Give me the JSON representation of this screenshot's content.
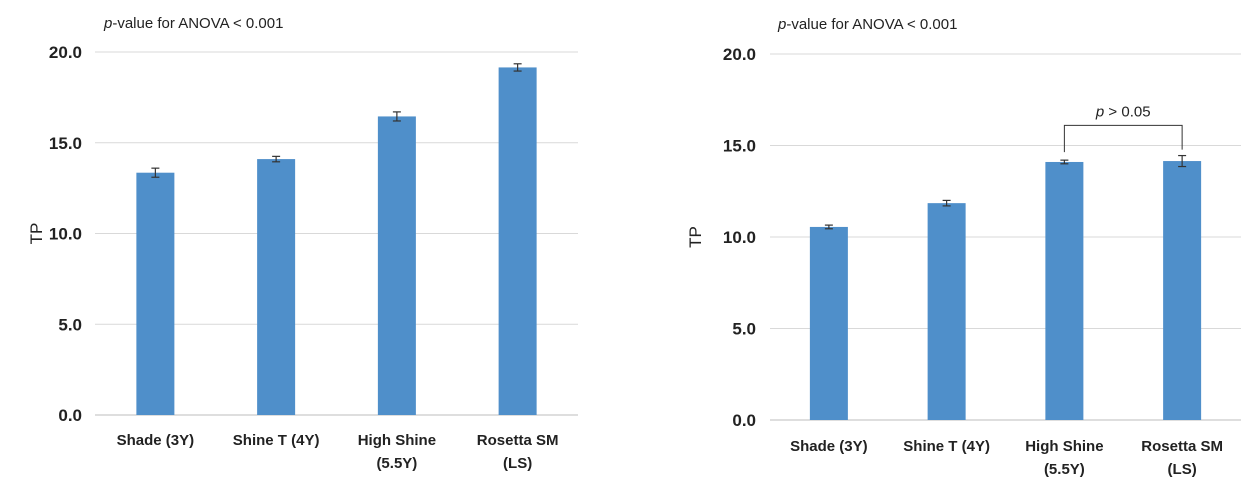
{
  "chart_data": [
    {
      "type": "bar",
      "annotation": {
        "italic": "p",
        "text": "-value for ANOVA < 0.001"
      },
      "ylabel": "TP",
      "xlabel": "",
      "ylim": [
        0,
        20
      ],
      "yticks": [
        "0.0",
        "5.0",
        "10.0",
        "15.0",
        "20.0"
      ],
      "grid": true,
      "categories": [
        [
          "Shade (3Y)"
        ],
        [
          "Shine T (4Y)"
        ],
        [
          "High Shine",
          "(5.5Y)"
        ],
        [
          "Rosetta SM",
          "(LS)"
        ]
      ],
      "values": [
        13.35,
        14.1,
        16.45,
        19.15
      ],
      "errors": [
        0.25,
        0.15,
        0.25,
        0.2
      ],
      "color": "#4f8fca"
    },
    {
      "type": "bar",
      "annotation": {
        "italic": "p",
        "text": "-value for ANOVA < 0.001"
      },
      "ylabel": "TP",
      "xlabel": "",
      "ylim": [
        0,
        20
      ],
      "yticks": [
        "0.0",
        "5.0",
        "10.0",
        "15.0",
        "20.0"
      ],
      "grid": true,
      "categories": [
        [
          "Shade (3Y)"
        ],
        [
          "Shine T (4Y)"
        ],
        [
          "High Shine",
          "(5.5Y)"
        ],
        [
          "Rosetta SM",
          "(LS)"
        ]
      ],
      "values": [
        10.55,
        11.85,
        14.1,
        14.15
      ],
      "errors": [
        0.1,
        0.15,
        0.1,
        0.3
      ],
      "color": "#4f8fca",
      "significance": {
        "italic": "p",
        "text": " > 0.05",
        "between": [
          2,
          3
        ]
      }
    }
  ]
}
